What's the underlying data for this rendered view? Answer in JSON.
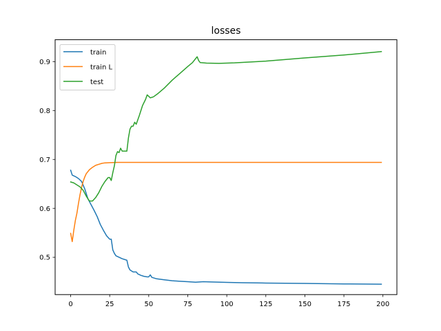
{
  "chart_data": {
    "type": "line",
    "title": "losses",
    "xlabel": "",
    "ylabel": "",
    "xlim": [
      -9.95,
      208.95
    ],
    "ylim": [
      0.4237,
      0.9448
    ],
    "xticks": [
      0,
      25,
      50,
      75,
      100,
      125,
      150,
      175,
      200
    ],
    "yticks": [
      0.5,
      0.6,
      0.7,
      0.8,
      0.9
    ],
    "grid": false,
    "legend_position": "top-left",
    "series": [
      {
        "name": "train",
        "color": "#1f77b4",
        "points": [
          [
            0,
            0.678
          ],
          [
            1,
            0.668
          ],
          [
            3,
            0.665
          ],
          [
            5,
            0.661
          ],
          [
            7,
            0.655
          ],
          [
            9,
            0.64
          ],
          [
            11,
            0.62
          ],
          [
            13,
            0.608
          ],
          [
            15,
            0.596
          ],
          [
            17,
            0.583
          ],
          [
            19,
            0.567
          ],
          [
            21,
            0.555
          ],
          [
            23,
            0.544
          ],
          [
            25,
            0.537
          ],
          [
            26,
            0.537
          ],
          [
            27,
            0.515
          ],
          [
            28,
            0.508
          ],
          [
            29,
            0.503
          ],
          [
            31,
            0.5
          ],
          [
            33,
            0.497
          ],
          [
            35,
            0.495
          ],
          [
            36,
            0.494
          ],
          [
            37,
            0.48
          ],
          [
            38,
            0.474
          ],
          [
            40,
            0.47
          ],
          [
            42,
            0.47
          ],
          [
            43,
            0.466
          ],
          [
            45,
            0.463
          ],
          [
            47,
            0.461
          ],
          [
            49,
            0.46
          ],
          [
            50,
            0.46
          ],
          [
            51,
            0.464
          ],
          [
            52,
            0.459
          ],
          [
            55,
            0.456
          ],
          [
            60,
            0.454
          ],
          [
            65,
            0.452
          ],
          [
            70,
            0.451
          ],
          [
            75,
            0.45
          ],
          [
            80,
            0.449
          ],
          [
            85,
            0.45
          ],
          [
            90,
            0.4495
          ],
          [
            100,
            0.4487
          ],
          [
            110,
            0.448
          ],
          [
            125,
            0.4473
          ],
          [
            150,
            0.4465
          ],
          [
            175,
            0.4455
          ],
          [
            199,
            0.445
          ]
        ]
      },
      {
        "name": "train L",
        "color": "#ff7f0e",
        "points": [
          [
            0,
            0.549
          ],
          [
            1,
            0.532
          ],
          [
            2,
            0.555
          ],
          [
            3,
            0.575
          ],
          [
            4,
            0.59
          ],
          [
            5,
            0.61
          ],
          [
            6,
            0.628
          ],
          [
            7,
            0.643
          ],
          [
            8,
            0.655
          ],
          [
            9,
            0.664
          ],
          [
            10,
            0.671
          ],
          [
            12,
            0.679
          ],
          [
            14,
            0.684
          ],
          [
            16,
            0.688
          ],
          [
            18,
            0.69
          ],
          [
            20,
            0.692
          ],
          [
            22,
            0.693
          ],
          [
            25,
            0.6935
          ],
          [
            30,
            0.694
          ],
          [
            40,
            0.694
          ],
          [
            60,
            0.694
          ],
          [
            100,
            0.694
          ],
          [
            150,
            0.694
          ],
          [
            199,
            0.694
          ]
        ]
      },
      {
        "name": "test",
        "color": "#2ca02c",
        "points": [
          [
            0,
            0.654
          ],
          [
            2,
            0.652
          ],
          [
            4,
            0.648
          ],
          [
            6,
            0.644
          ],
          [
            8,
            0.637
          ],
          [
            10,
            0.625
          ],
          [
            12,
            0.615
          ],
          [
            14,
            0.615
          ],
          [
            16,
            0.622
          ],
          [
            18,
            0.632
          ],
          [
            20,
            0.645
          ],
          [
            22,
            0.655
          ],
          [
            24,
            0.663
          ],
          [
            25,
            0.663
          ],
          [
            26,
            0.657
          ],
          [
            27,
            0.673
          ],
          [
            28,
            0.687
          ],
          [
            29,
            0.708
          ],
          [
            30,
            0.716
          ],
          [
            31,
            0.714
          ],
          [
            32,
            0.723
          ],
          [
            33,
            0.717
          ],
          [
            34,
            0.717
          ],
          [
            36,
            0.717
          ],
          [
            37,
            0.744
          ],
          [
            38,
            0.762
          ],
          [
            39,
            0.768
          ],
          [
            40,
            0.768
          ],
          [
            41,
            0.776
          ],
          [
            42,
            0.772
          ],
          [
            44,
            0.79
          ],
          [
            46,
            0.81
          ],
          [
            48,
            0.823
          ],
          [
            49,
            0.832
          ],
          [
            50,
            0.829
          ],
          [
            51,
            0.826
          ],
          [
            53,
            0.828
          ],
          [
            56,
            0.835
          ],
          [
            60,
            0.846
          ],
          [
            65,
            0.862
          ],
          [
            70,
            0.876
          ],
          [
            75,
            0.89
          ],
          [
            78,
            0.898
          ],
          [
            80,
            0.906
          ],
          [
            81,
            0.91
          ],
          [
            82,
            0.902
          ],
          [
            83,
            0.898
          ],
          [
            87,
            0.897
          ],
          [
            95,
            0.8965
          ],
          [
            105,
            0.8975
          ],
          [
            125,
            0.901
          ],
          [
            150,
            0.9075
          ],
          [
            175,
            0.9135
          ],
          [
            199,
            0.9205
          ]
        ]
      }
    ]
  }
}
